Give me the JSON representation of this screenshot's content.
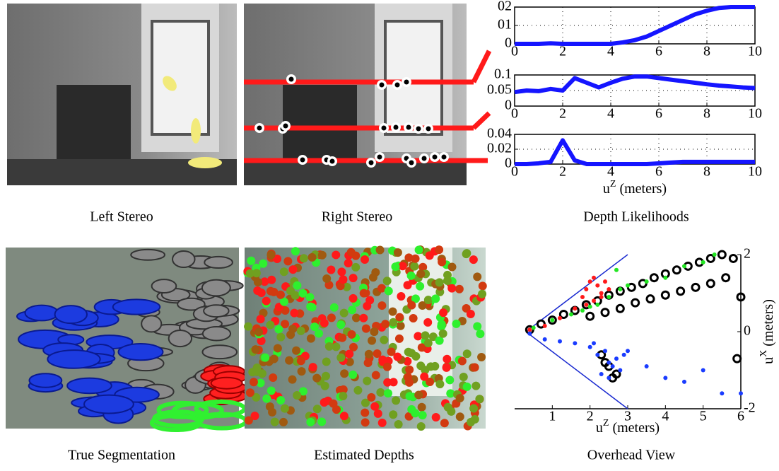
{
  "captions": [
    "Left Stereo",
    "Right Stereo",
    "Depth Likelihoods",
    "True Segmentation",
    "Estimated Depths",
    "Overhead View"
  ],
  "chart_data": [
    {
      "type": "line",
      "color": "#1515ff",
      "grid": true,
      "x": [
        0,
        0.5,
        1,
        1.5,
        2,
        2.5,
        3,
        3.5,
        4,
        4.5,
        5,
        5.5,
        6,
        6.5,
        7,
        7.5,
        8,
        8.5,
        9,
        9.5,
        10
      ],
      "values": [
        0,
        0,
        0,
        0.0003,
        0,
        0,
        0,
        0,
        0,
        0.0008,
        0.002,
        0.004,
        0.007,
        0.01,
        0.013,
        0.016,
        0.018,
        0.0195,
        0.02,
        0.02,
        0.02
      ],
      "xlim": [
        0,
        10
      ],
      "xticks": [
        0,
        2,
        4,
        6,
        8,
        10
      ],
      "ylim": [
        0,
        0.02
      ],
      "yticks": [
        0,
        {
          "value": 0.01,
          "label": "01"
        },
        {
          "value": 0.02,
          "label": "02"
        }
      ]
    },
    {
      "type": "line",
      "color": "#1515ff",
      "grid": true,
      "x": [
        0,
        0.5,
        1,
        1.5,
        2,
        2.5,
        3,
        3.5,
        4,
        4.5,
        5,
        5.5,
        6,
        6.5,
        7,
        7.5,
        8,
        8.5,
        9,
        9.5,
        10
      ],
      "values": [
        0.045,
        0.05,
        0.048,
        0.055,
        0.05,
        0.09,
        0.075,
        0.06,
        0.075,
        0.088,
        0.095,
        0.095,
        0.09,
        0.085,
        0.08,
        0.075,
        0.07,
        0.066,
        0.063,
        0.06,
        0.058
      ],
      "xlim": [
        0,
        10
      ],
      "xticks": [
        0,
        2,
        4,
        6,
        8,
        10
      ],
      "ylim": [
        0,
        0.1
      ],
      "yticks": [
        0,
        0.05,
        0.1
      ]
    },
    {
      "type": "line",
      "color": "#1515ff",
      "grid": true,
      "x": [
        0,
        0.5,
        1,
        1.5,
        2,
        2.5,
        3,
        3.5,
        4,
        4.5,
        5,
        5.5,
        6,
        6.5,
        7,
        7.5,
        8,
        8.5,
        9,
        9.5,
        10
      ],
      "values": [
        0,
        0,
        0.001,
        0.003,
        0.032,
        0.005,
        0,
        0,
        0,
        0,
        0,
        0,
        0.001,
        0.002,
        0.003,
        0.003,
        0.003,
        0.003,
        0.003,
        0.003,
        0.003
      ],
      "xlim": [
        0,
        10
      ],
      "xticks": [
        0,
        2,
        4,
        6,
        8,
        10
      ],
      "ylim": [
        0,
        0.04
      ],
      "yticks": [
        0,
        0.02,
        0.04
      ],
      "xlabel": {
        "base": "u",
        "sup": "Z",
        "unit": "(meters)"
      }
    },
    {
      "type": "scatter",
      "xlim": [
        0,
        6
      ],
      "xticks": [
        1,
        2,
        3,
        4,
        5,
        6
      ],
      "ylim": [
        -2,
        2
      ],
      "yticks": [
        -2,
        0,
        2
      ],
      "xlabel": {
        "base": "u",
        "sup": "Z",
        "unit": "(meters)"
      },
      "ylabel": {
        "base": "u",
        "sup": "X",
        "unit": "(meters)"
      },
      "series": [
        {
          "color": "#000000",
          "x": [
            0.4,
            0.7,
            1.0,
            1.3,
            1.6,
            1.9,
            2.2,
            2.5,
            2.8,
            3.1,
            3.4,
            3.7,
            4.0,
            4.3,
            4.6,
            4.9,
            5.2,
            5.5,
            5.8,
            2.0,
            2.4,
            2.8,
            3.2,
            3.6,
            4.0,
            4.4,
            4.8,
            5.2,
            5.6,
            6.0,
            2.3,
            2.5,
            2.7,
            2.4,
            2.6,
            5.9
          ],
          "y": [
            0.05,
            0.2,
            0.3,
            0.45,
            0.55,
            0.7,
            0.8,
            0.95,
            1.05,
            1.15,
            1.25,
            1.4,
            1.5,
            1.6,
            1.7,
            1.8,
            1.9,
            2.0,
            1.9,
            0.4,
            0.5,
            0.6,
            0.75,
            0.85,
            0.95,
            1.05,
            1.15,
            1.25,
            1.4,
            0.9,
            -0.6,
            -0.9,
            -1.1,
            -0.8,
            -1.2,
            -0.7
          ]
        },
        {
          "color": "#ff1a1a",
          "x": [
            0.4,
            0.8,
            1.2,
            1.6,
            1.8,
            1.9,
            2.0,
            2.1,
            2.2,
            2.3,
            2.4,
            2.5,
            1.9,
            2.1,
            2.3
          ],
          "y": [
            0.05,
            0.15,
            0.35,
            0.6,
            0.9,
            1.1,
            1.3,
            1.4,
            1.2,
            1.0,
            1.3,
            1.1,
            0.7,
            0.8,
            0.9
          ]
        },
        {
          "color": "#22e622",
          "x": [
            0.5,
            1.0,
            1.5,
            1.8,
            2.0,
            2.2,
            2.5,
            2.8,
            3.0,
            3.5,
            4.0,
            4.5,
            5.0,
            5.3,
            2.7
          ],
          "y": [
            0.1,
            0.3,
            0.45,
            0.55,
            0.65,
            0.7,
            0.9,
            1.1,
            1.2,
            1.3,
            1.4,
            1.7,
            1.8,
            2.0,
            1.6
          ]
        },
        {
          "color": "#1a3cff",
          "x": [
            0.4,
            0.8,
            1.2,
            1.6,
            2.0,
            2.2,
            2.4,
            2.5,
            2.6,
            2.7,
            2.8,
            2.3,
            2.5,
            3.0,
            3.5,
            4.0,
            4.5,
            5.0,
            5.5,
            6.0,
            2.1,
            2.9
          ],
          "y": [
            -0.05,
            -0.2,
            -0.25,
            -0.3,
            -0.4,
            -0.6,
            -0.5,
            -0.8,
            -0.9,
            -0.7,
            -1.0,
            -1.1,
            -1.2,
            -0.5,
            -0.9,
            -1.2,
            -1.3,
            -1.0,
            -1.6,
            -1.6,
            -0.3,
            -0.6
          ]
        }
      ]
    }
  ]
}
